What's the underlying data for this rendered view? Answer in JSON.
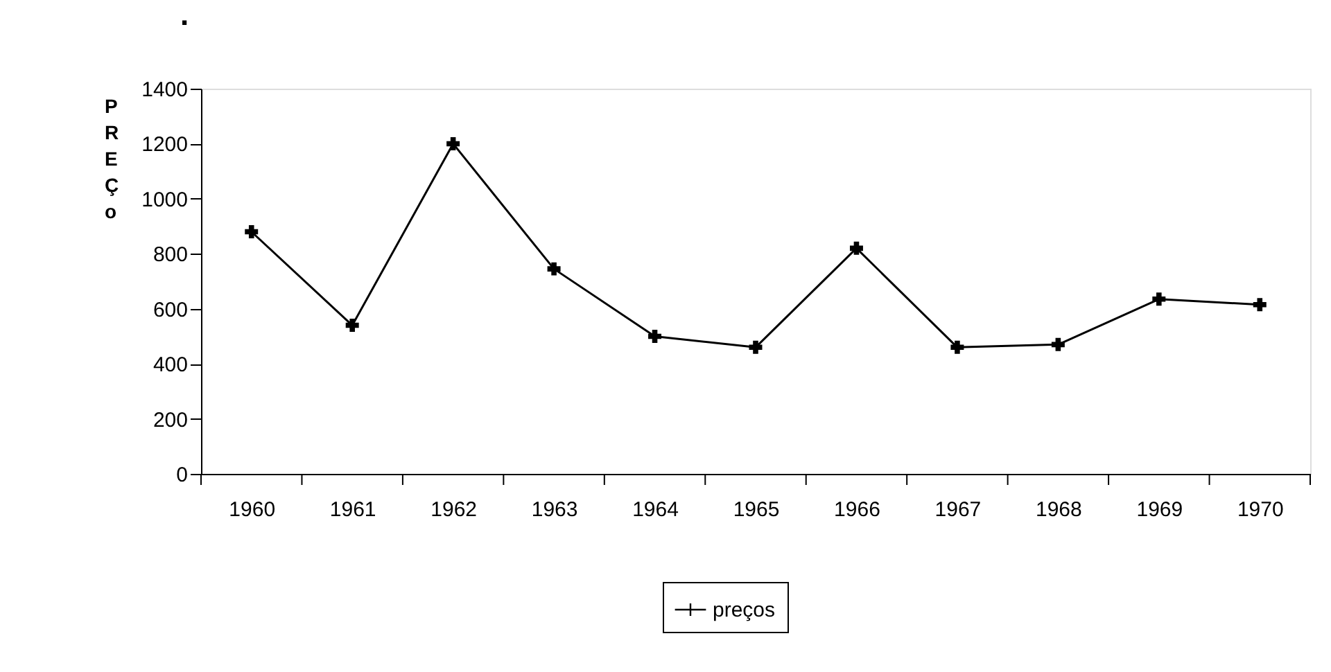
{
  "chart_data": {
    "type": "line",
    "title": ".",
    "ylabel": "PREÇo",
    "categories": [
      "1960",
      "1961",
      "1962",
      "1963",
      "1964",
      "1965",
      "1966",
      "1967",
      "1968",
      "1969",
      "1970"
    ],
    "series": [
      {
        "name": "preços",
        "color": "#000000",
        "values": [
          880,
          540,
          1200,
          745,
          500,
          460,
          820,
          460,
          470,
          635,
          615
        ]
      }
    ],
    "ylim": [
      0,
      1400
    ],
    "yticks": [
      0,
      200,
      400,
      600,
      800,
      1000,
      1200,
      1400
    ],
    "grid": false,
    "legend": "bottom",
    "marker": "cross",
    "line_style": "solid"
  }
}
